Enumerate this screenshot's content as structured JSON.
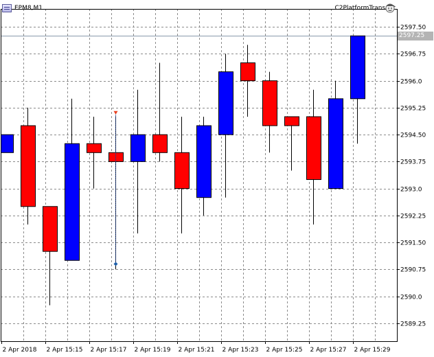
{
  "header": {
    "symbol": "EPM8,M1",
    "expert_name": "C2PlatformTransmit",
    "expert_icon": "smiley-cap-icon",
    "chart_icon": "chart-window-icon"
  },
  "current_price": "2597.25",
  "colors": {
    "bull": "#0000ff",
    "bear": "#ff0000",
    "grid": "#8a8a8a",
    "price_tag_bg": "#b4b4b4",
    "price_line": "#8899aa",
    "arrow_up": "#1e5fa8",
    "arrow_down": "#e84020"
  },
  "chart_data": {
    "type": "candlestick",
    "ylim": [
      2588.75,
      2598.0
    ],
    "y_ticks": [
      2597.5,
      2596.75,
      2596.0,
      2595.25,
      2594.5,
      2593.75,
      2593.0,
      2592.25,
      2591.5,
      2590.75,
      2590.0,
      2589.25
    ],
    "y_tick_labels": [
      "2597.50",
      "2596.75",
      "2596.0",
      "2595.25",
      "2594.50",
      "2593.75",
      "2593.0",
      "2592.25",
      "2591.50",
      "2590.75",
      "2590.0",
      "2589.25"
    ],
    "x_labels": [
      "2 Apr 2018",
      "2 Apr 15:15",
      "2 Apr 15:17",
      "2 Apr 15:19",
      "2 Apr 15:21",
      "2 Apr 15:23",
      "2 Apr 15:25",
      "2 Apr 15:27",
      "2 Apr 15:29"
    ],
    "candles": [
      {
        "open": 2594.0,
        "high": 2594.5,
        "low": 2594.0,
        "close": 2594.5
      },
      {
        "open": 2594.75,
        "high": 2595.25,
        "low": 2592.0,
        "close": 2592.5
      },
      {
        "open": 2592.5,
        "high": 2592.5,
        "low": 2589.75,
        "close": 2591.25
      },
      {
        "open": 2591.0,
        "high": 2595.5,
        "low": 2591.0,
        "close": 2594.25
      },
      {
        "open": 2594.25,
        "high": 2595.0,
        "low": 2593.0,
        "close": 2594.0
      },
      {
        "open": 2594.0,
        "high": 2595.0,
        "low": 2590.75,
        "close": 2593.75
      },
      {
        "open": 2593.75,
        "high": 2595.75,
        "low": 2591.75,
        "close": 2594.5
      },
      {
        "open": 2594.5,
        "high": 2596.5,
        "low": 2593.75,
        "close": 2594.0
      },
      {
        "open": 2594.0,
        "high": 2595.0,
        "low": 2591.75,
        "close": 2593.0
      },
      {
        "open": 2592.75,
        "high": 2595.0,
        "low": 2592.25,
        "close": 2594.75
      },
      {
        "open": 2594.5,
        "high": 2596.75,
        "low": 2592.75,
        "close": 2596.25
      },
      {
        "open": 2596.5,
        "high": 2597.0,
        "low": 2595.0,
        "close": 2596.0
      },
      {
        "open": 2596.0,
        "high": 2596.25,
        "low": 2594.0,
        "close": 2594.75
      },
      {
        "open": 2595.0,
        "high": 2595.0,
        "low": 2593.5,
        "close": 2594.75
      },
      {
        "open": 2595.0,
        "high": 2595.75,
        "low": 2592.0,
        "close": 2593.25
      },
      {
        "open": 2593.0,
        "high": 2596.0,
        "low": 2593.0,
        "close": 2595.5
      },
      {
        "open": 2595.5,
        "high": 2597.25,
        "low": 2594.25,
        "close": 2597.25
      }
    ],
    "trade_markers": [
      {
        "candle": 5,
        "price": 2595.1,
        "direction": "down"
      },
      {
        "candle": 5,
        "price": 2590.9,
        "direction": "up"
      }
    ],
    "grid": true
  }
}
